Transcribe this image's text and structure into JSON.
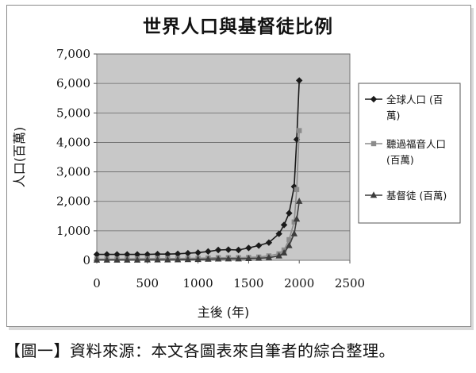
{
  "chart_data": {
    "type": "line",
    "title": "世界人口與基督徒比例",
    "xlabel": "主後 (年)",
    "ylabel": "人口(百萬)",
    "xlim": [
      0,
      2500
    ],
    "ylim": [
      0,
      7000
    ],
    "x_ticks": [
      "0",
      "500",
      "1000",
      "1500",
      "2000",
      "2500"
    ],
    "y_ticks": [
      "0",
      "1,000",
      "2,000",
      "3,000",
      "4,000",
      "5,000",
      "6,000",
      "7,000"
    ],
    "grid": true,
    "legend_position": "right",
    "colors": {
      "plot_bg": "#c8c8c8",
      "global": "#1a1a1a",
      "heard": "#8c8c8c",
      "christian": "#3c3c3c"
    },
    "series": [
      {
        "name_lines": [
          "全球人口 (百",
          "萬)"
        ],
        "marker": "diamond",
        "points": [
          [
            0,
            200
          ],
          [
            100,
            200
          ],
          [
            200,
            200
          ],
          [
            300,
            200
          ],
          [
            400,
            200
          ],
          [
            500,
            200
          ],
          [
            600,
            210
          ],
          [
            700,
            210
          ],
          [
            800,
            220
          ],
          [
            900,
            240
          ],
          [
            1000,
            260
          ],
          [
            1100,
            300
          ],
          [
            1200,
            350
          ],
          [
            1300,
            360
          ],
          [
            1400,
            350
          ],
          [
            1500,
            420
          ],
          [
            1600,
            500
          ],
          [
            1700,
            600
          ],
          [
            1800,
            900
          ],
          [
            1850,
            1200
          ],
          [
            1900,
            1600
          ],
          [
            1950,
            2500
          ],
          [
            1975,
            4100
          ],
          [
            2000,
            6100
          ]
        ]
      },
      {
        "name_lines": [
          "聽過福音人口",
          "(百萬)"
        ],
        "marker": "square",
        "points": [
          [
            0,
            40
          ],
          [
            100,
            40
          ],
          [
            200,
            40
          ],
          [
            300,
            45
          ],
          [
            400,
            50
          ],
          [
            500,
            55
          ],
          [
            600,
            60
          ],
          [
            700,
            60
          ],
          [
            800,
            60
          ],
          [
            900,
            65
          ],
          [
            1000,
            70
          ],
          [
            1100,
            80
          ],
          [
            1200,
            90
          ],
          [
            1300,
            90
          ],
          [
            1400,
            90
          ],
          [
            1500,
            100
          ],
          [
            1600,
            110
          ],
          [
            1700,
            150
          ],
          [
            1800,
            220
          ],
          [
            1850,
            350
          ],
          [
            1900,
            700
          ],
          [
            1950,
            1300
          ],
          [
            1975,
            2400
          ],
          [
            2000,
            4400
          ]
        ]
      },
      {
        "name_lines": [
          "基督徒 (百萬)"
        ],
        "marker": "triangle",
        "points": [
          [
            0,
            10
          ],
          [
            100,
            10
          ],
          [
            200,
            10
          ],
          [
            300,
            10
          ],
          [
            400,
            10
          ],
          [
            500,
            15
          ],
          [
            600,
            15
          ],
          [
            700,
            15
          ],
          [
            800,
            20
          ],
          [
            900,
            25
          ],
          [
            1000,
            30
          ],
          [
            1100,
            40
          ],
          [
            1200,
            45
          ],
          [
            1300,
            50
          ],
          [
            1400,
            50
          ],
          [
            1500,
            60
          ],
          [
            1600,
            70
          ],
          [
            1700,
            90
          ],
          [
            1800,
            150
          ],
          [
            1850,
            250
          ],
          [
            1900,
            500
          ],
          [
            1950,
            900
          ],
          [
            1975,
            1400
          ],
          [
            2000,
            2000
          ]
        ]
      }
    ]
  },
  "caption": "【圖一】資料來源：本文各圖表來自筆者的綜合整理。"
}
